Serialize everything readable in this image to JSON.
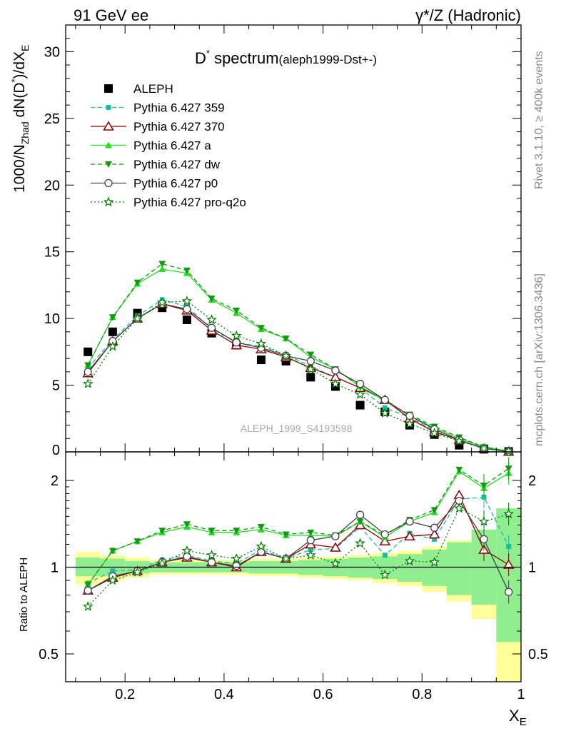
{
  "header": {
    "left": "91 GeV ee",
    "right": "γ*/Z (Hadronic)"
  },
  "side": {
    "rivet": "Rivet 3.1.10, ≥ 400k events",
    "mcplots": "mcplots.cern.ch [arXiv:1306.3436]"
  },
  "watermark": "ALEPH_1999_S4193598",
  "plot_title": {
    "main": "D",
    "sup": "*",
    "word": " spectrum",
    "tag": "(aleph1999-Dst+-)"
  },
  "ylabel_main": "1000/N_Zhad dN(D*)/dX_E",
  "ylabel_ratio": "Ratio to ALEPH",
  "xlabel": "X_E",
  "chart_data": [
    {
      "type": "line",
      "title": "D* spectrum (aleph1999-Dst+-)",
      "xlabel": "X_E",
      "ylabel": "1000/N_Zhad dN(D*)/dX_E",
      "xlim": [
        0.08,
        1.0
      ],
      "ylim": [
        0,
        32
      ],
      "yticks": [
        5,
        10,
        15,
        20,
        25,
        30
      ],
      "xticks": [
        0.2,
        0.4,
        0.6,
        0.8,
        1
      ],
      "legend": "top-left",
      "x": [
        0.125,
        0.175,
        0.225,
        0.275,
        0.325,
        0.375,
        0.425,
        0.475,
        0.525,
        0.575,
        0.625,
        0.675,
        0.725,
        0.775,
        0.825,
        0.875,
        0.925,
        0.975
      ],
      "series": [
        {
          "name": "ALEPH",
          "color": "#000000",
          "marker": "square",
          "line": "none",
          "values": [
            7.5,
            9.0,
            10.4,
            10.8,
            9.9,
            8.9,
            8.0,
            6.9,
            6.8,
            5.6,
            4.9,
            3.5,
            3.0,
            2.0,
            1.3,
            0.5,
            0.2,
            0.03
          ]
        },
        {
          "name": "Pythia 6.427 359",
          "color": "#1abc9c",
          "marker": "square-small",
          "line": "dashed",
          "values": [
            6.3,
            8.4,
            10.2,
            11.4,
            10.9,
            9.2,
            8.2,
            7.9,
            7.3,
            6.4,
            5.6,
            4.8,
            3.3,
            2.6,
            1.6,
            0.8,
            0.35,
            0.04
          ]
        },
        {
          "name": "Pythia 6.427 370",
          "color": "#8b0000",
          "marker": "triangle-open",
          "line": "solid",
          "values": [
            5.9,
            8.3,
            10.0,
            11.1,
            10.6,
            9.1,
            8.0,
            7.7,
            7.1,
            6.3,
            5.6,
            4.8,
            3.9,
            2.5,
            1.5,
            0.9,
            0.25,
            0.03
          ]
        },
        {
          "name": "Pythia 6.427 a",
          "color": "#22dd22",
          "marker": "triangle",
          "line": "solid",
          "values": [
            6.5,
            10.1,
            12.6,
            13.7,
            13.4,
            11.4,
            10.4,
            9.2,
            8.5,
            7.1,
            6.2,
            4.9,
            3.9,
            2.7,
            1.8,
            1.0,
            0.38,
            0.06
          ]
        },
        {
          "name": "Pythia 6.427 dw",
          "color": "#119911",
          "marker": "triangle-down",
          "line": "dashed",
          "values": [
            6.5,
            10.1,
            12.7,
            14.1,
            13.6,
            11.5,
            10.6,
            9.3,
            8.5,
            7.3,
            6.2,
            4.9,
            3.8,
            2.8,
            1.9,
            1.1,
            0.36,
            0.05
          ]
        },
        {
          "name": "Pythia 6.427 p0",
          "color": "#444444",
          "marker": "circle-open",
          "line": "solid",
          "values": [
            6.0,
            8.3,
            10.0,
            11.1,
            10.7,
            9.3,
            8.2,
            7.8,
            7.2,
            6.8,
            6.1,
            5.1,
            3.9,
            2.7,
            1.7,
            0.9,
            0.25,
            0.02
          ]
        },
        {
          "name": "Pythia 6.427 pro-q2o",
          "color": "#007700",
          "marker": "star-open",
          "line": "dotted",
          "values": [
            5.1,
            7.9,
            10.0,
            11.2,
            11.3,
            9.9,
            8.7,
            8.1,
            7.2,
            6.2,
            5.1,
            4.3,
            2.9,
            2.1,
            1.4,
            0.8,
            0.25,
            0.04
          ]
        }
      ]
    },
    {
      "type": "line",
      "xlabel": "X_E",
      "ylabel": "Ratio to ALEPH",
      "xlim": [
        0.08,
        1.0
      ],
      "ylim": [
        0.4,
        2.3
      ],
      "yticks": [
        0.5,
        1,
        2
      ],
      "scale": "log",
      "reference_line": 1,
      "x": [
        0.125,
        0.175,
        0.225,
        0.275,
        0.325,
        0.375,
        0.425,
        0.475,
        0.525,
        0.575,
        0.625,
        0.675,
        0.725,
        0.775,
        0.825,
        0.875,
        0.925,
        0.975
      ],
      "band_stat": {
        "color": "#90ee90",
        "lo": [
          0.93,
          0.93,
          0.95,
          0.96,
          0.96,
          0.96,
          0.96,
          0.95,
          0.95,
          0.94,
          0.93,
          0.92,
          0.91,
          0.89,
          0.86,
          0.8,
          0.74,
          0.55
        ],
        "hi": [
          1.08,
          1.07,
          1.05,
          1.04,
          1.04,
          1.04,
          1.04,
          1.05,
          1.05,
          1.06,
          1.07,
          1.08,
          1.09,
          1.11,
          1.15,
          1.22,
          1.35,
          1.6
        ]
      },
      "band_total": {
        "color": "#ffff99",
        "lo": [
          0.87,
          0.9,
          0.92,
          0.94,
          0.94,
          0.94,
          0.94,
          0.93,
          0.93,
          0.92,
          0.91,
          0.9,
          0.88,
          0.86,
          0.82,
          0.76,
          0.66,
          0.4
        ]
      },
      "series": [
        {
          "name": "Pythia 6.427 359",
          "values": [
            0.88,
            0.97,
            0.98,
            1.06,
            1.1,
            1.05,
            1.03,
            1.15,
            1.07,
            1.15,
            1.16,
            1.38,
            1.1,
            1.31,
            1.25,
            1.72,
            1.75,
            1.18
          ]
        },
        {
          "name": "Pythia 6.427 370",
          "values": [
            0.83,
            0.92,
            0.97,
            1.04,
            1.08,
            1.04,
            1.0,
            1.13,
            1.07,
            1.2,
            1.17,
            1.4,
            1.23,
            1.28,
            1.3,
            1.78,
            1.15,
            1.02
          ]
        },
        {
          "name": "Pythia 6.427 a",
          "values": [
            0.87,
            1.14,
            1.23,
            1.32,
            1.38,
            1.32,
            1.32,
            1.35,
            1.29,
            1.29,
            1.28,
            1.44,
            1.27,
            1.44,
            1.55,
            2.15,
            1.88,
            2.12
          ]
        },
        {
          "name": "Pythia 6.427 dw",
          "values": [
            0.87,
            1.14,
            1.23,
            1.34,
            1.41,
            1.34,
            1.34,
            1.38,
            1.3,
            1.32,
            1.29,
            1.44,
            1.29,
            1.46,
            1.58,
            2.18,
            1.92,
            2.2
          ]
        },
        {
          "name": "Pythia 6.427 p0",
          "values": [
            0.83,
            0.93,
            0.97,
            1.04,
            1.09,
            1.04,
            1.01,
            1.13,
            1.07,
            1.24,
            1.28,
            1.52,
            1.3,
            1.44,
            1.37,
            1.7,
            1.25,
            0.82
          ]
        },
        {
          "name": "Pythia 6.427 pro-q2o",
          "values": [
            0.73,
            0.9,
            0.96,
            1.03,
            1.14,
            1.1,
            1.07,
            1.18,
            1.07,
            1.1,
            1.03,
            1.21,
            0.94,
            1.05,
            1.04,
            1.6,
            1.44,
            1.53
          ]
        }
      ]
    }
  ]
}
